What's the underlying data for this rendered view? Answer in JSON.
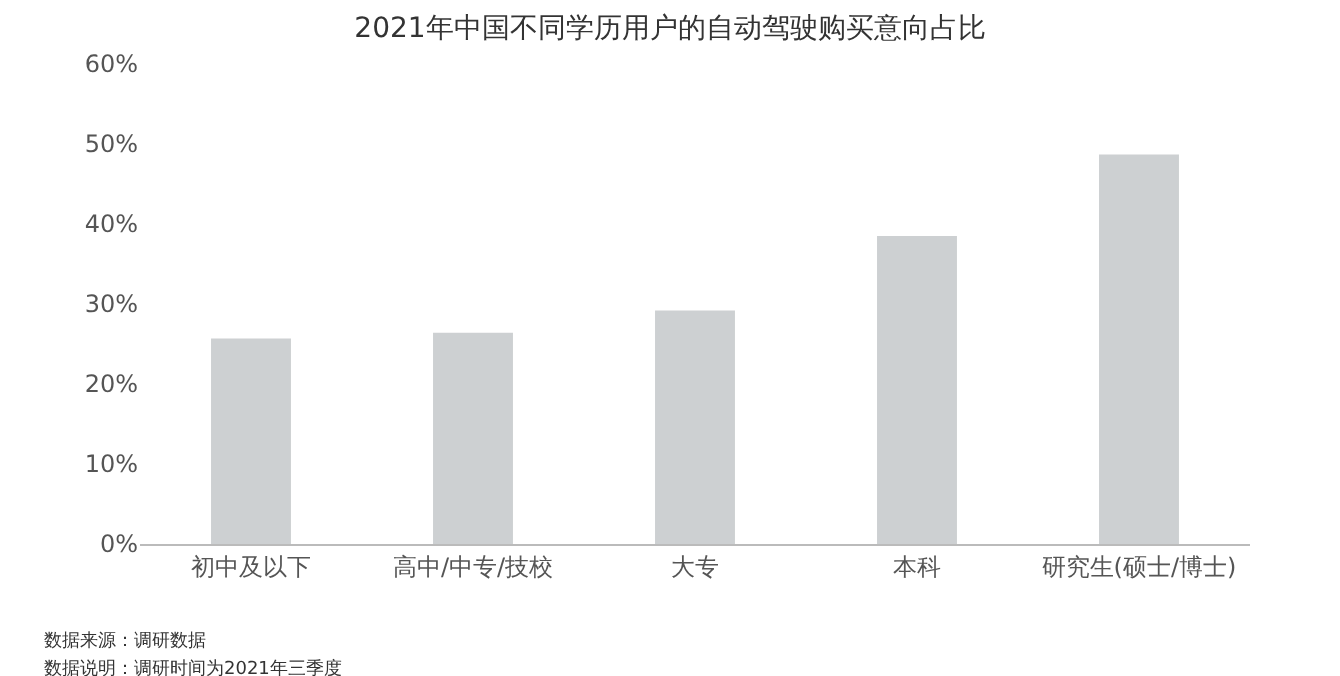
{
  "chart_data": {
    "type": "bar",
    "title": "2021年中国不同学历用户的自动驾驶购买意向占比",
    "categories": [
      "初中及以下",
      "高中/中专/技校",
      "大专",
      "本科",
      "研究生(硕士/博士)"
    ],
    "values": [
      25.7,
      26.4,
      29.2,
      38.5,
      48.7
    ],
    "color": "#cdd0d2",
    "ylim": [
      0,
      60
    ],
    "yticks": [
      {
        "value": 0,
        "label": "0%"
      },
      {
        "value": 10,
        "label": "10%"
      },
      {
        "value": 20,
        "label": "20%"
      },
      {
        "value": 30,
        "label": "30%"
      },
      {
        "value": 40,
        "label": "40%"
      },
      {
        "value": 50,
        "label": "50%"
      },
      {
        "value": 60,
        "label": "60%"
      }
    ],
    "grid": false,
    "annotations": [
      "数据来源：调研数据",
      "数据说明：调研时间为2021年三季度"
    ]
  }
}
